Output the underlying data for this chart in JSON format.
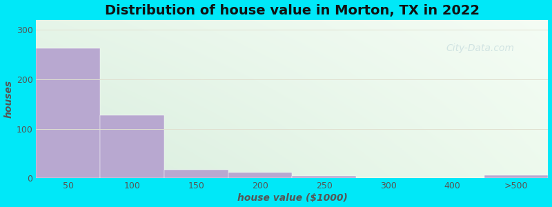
{
  "title": "Distribution of house value in Morton, TX in 2022",
  "xlabel": "house value ($1000)",
  "ylabel": "houses",
  "bar_labels": [
    "50",
    "100",
    "150",
    "200",
    "250",
    "300",
    "400",
    ">500"
  ],
  "bar_values": [
    262,
    128,
    18,
    12,
    5,
    0,
    0,
    6
  ],
  "bar_color": "#b8a8d0",
  "ylim": [
    0,
    320
  ],
  "yticks": [
    0,
    100,
    200,
    300
  ],
  "background_outer": "#00e8f8",
  "grad_color_topleft": "#e8f5ea",
  "grad_color_topright": "#f5fdf5",
  "grad_color_bottomleft": "#d8eedd",
  "grad_color_bottomright": "#eaf8ea",
  "grid_color": "#e0e0d0",
  "title_fontsize": 14,
  "axis_label_fontsize": 10,
  "tick_fontsize": 9,
  "watermark_text": "City-Data.com",
  "watermark_color": "#aac8d0",
  "watermark_alpha": 0.45
}
